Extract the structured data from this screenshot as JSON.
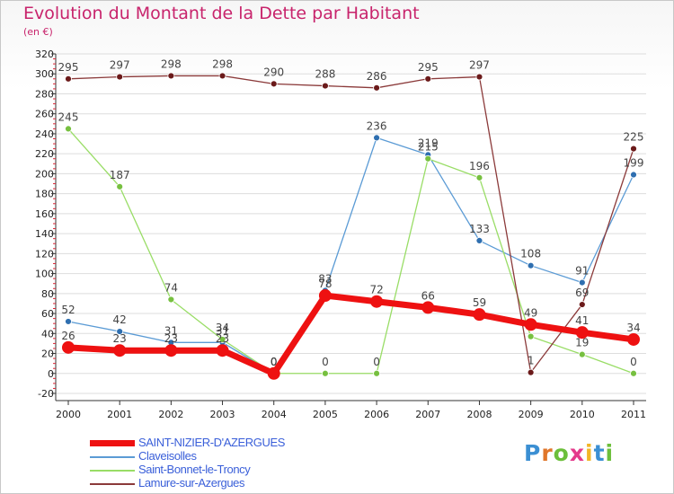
{
  "title": "Evolution du Montant de la Dette par Habitant",
  "unit_label": "(en €)",
  "brand": {
    "text": "Proxiti",
    "letter_colors": [
      "#3b8fd3",
      "#e0762a",
      "#6cbf3b",
      "#e43a8b",
      "#f2b627",
      "#3b8fd3",
      "#6cbf3b"
    ]
  },
  "colors": {
    "title": "#c8246c",
    "axis_text": "#222222",
    "value_label": "#444444",
    "grid": "#dddddd"
  },
  "chart_data": {
    "type": "line",
    "title": "Evolution du Montant de la Dette par Habitant",
    "ylabel": "(en €)",
    "xlabel": "",
    "x": [
      "2000",
      "2001",
      "2002",
      "2003",
      "2004",
      "2005",
      "2006",
      "2007",
      "2008",
      "2009",
      "2010",
      "2011"
    ],
    "ylim": [
      -20,
      320
    ],
    "yticks": [
      -20,
      0,
      20,
      40,
      60,
      80,
      100,
      120,
      140,
      160,
      180,
      200,
      220,
      240,
      260,
      280,
      300,
      320
    ],
    "grid": "horizontal",
    "legend_position": "bottom-left",
    "series": [
      {
        "name": "SAINT-NIZIER-D'AZERGUES",
        "color": "#ee1111",
        "marker_color": "#ee1111",
        "emphasis": true,
        "values": [
          26,
          23,
          23,
          23,
          0,
          78,
          72,
          66,
          59,
          49,
          41,
          34
        ],
        "labels": [
          "26",
          "23",
          "23",
          "23",
          "0",
          "78",
          "72",
          "66",
          "59",
          "49",
          "41",
          "34"
        ]
      },
      {
        "name": "Claveisolles",
        "color": "#5b9bd5",
        "marker_color": "#2f6fb0",
        "emphasis": false,
        "values": [
          52,
          42,
          31,
          31,
          0,
          83,
          236,
          219,
          133,
          108,
          91,
          199
        ],
        "labels": [
          "52",
          "42",
          "31",
          "31",
          "0",
          "83",
          "236",
          "219",
          "133",
          "108",
          "91",
          "199"
        ]
      },
      {
        "name": "Saint-Bonnet-le-Troncy",
        "color": "#99dd66",
        "marker_color": "#77c040",
        "emphasis": false,
        "values": [
          245,
          187,
          74,
          34,
          0,
          0,
          0,
          215,
          196,
          37,
          19,
          0
        ],
        "labels": [
          "245",
          "187",
          "74",
          "34",
          "0",
          "0",
          "0",
          "215",
          "196",
          "",
          "19",
          "0"
        ]
      },
      {
        "name": "Lamure-sur-Azergues",
        "color": "#8b3a3a",
        "marker_color": "#6b1a1a",
        "emphasis": false,
        "values": [
          295,
          297,
          298,
          298,
          290,
          288,
          286,
          295,
          297,
          1,
          69,
          225
        ],
        "labels": [
          "295",
          "297",
          "298",
          "298",
          "290",
          "288",
          "286",
          "295",
          "297",
          "1",
          "69",
          "225"
        ]
      }
    ]
  }
}
